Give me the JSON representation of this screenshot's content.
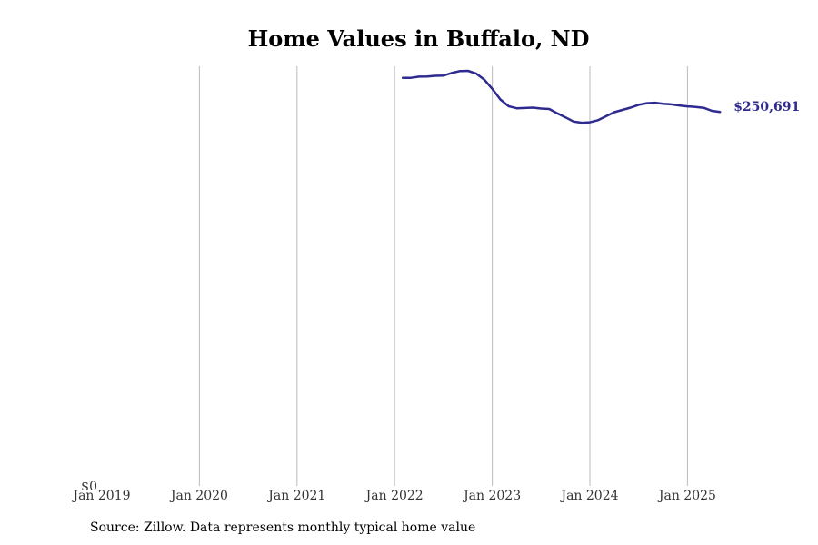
{
  "chart_data": {
    "type": "line",
    "title": "Home Values in Buffalo, ND",
    "source": "Source: Zillow. Data represents monthly typical home value",
    "xlabel": "",
    "ylabel": "",
    "x_ticks": [
      "Jan 2019",
      "Jan 2020",
      "Jan 2021",
      "Jan 2022",
      "Jan 2023",
      "Jan 2024",
      "Jan 2025"
    ],
    "y_ticks": [
      "$0"
    ],
    "ylim": [
      0,
      280000
    ],
    "grid": "vertical",
    "line_color": "#2e2a8f",
    "end_label": "$250,691",
    "series": [
      {
        "x": [
          "2022-02",
          "2022-03",
          "2022-04",
          "2022-05",
          "2022-06",
          "2022-07",
          "2022-08",
          "2022-09",
          "2022-10",
          "2022-11",
          "2022-12",
          "2023-01",
          "2023-02",
          "2023-03",
          "2023-04",
          "2023-05",
          "2023-06",
          "2023-07",
          "2023-08",
          "2023-09",
          "2023-10",
          "2023-11",
          "2023-12",
          "2024-01",
          "2024-02",
          "2024-03",
          "2024-04",
          "2024-05",
          "2024-06",
          "2024-07",
          "2024-08",
          "2024-09",
          "2024-10",
          "2024-11",
          "2024-12",
          "2025-01",
          "2025-02",
          "2025-03",
          "2025-04",
          "2025-05"
        ],
        "values": [
          273500,
          273500,
          274300,
          274400,
          274800,
          275000,
          276700,
          278000,
          278200,
          276400,
          272300,
          266100,
          259000,
          254500,
          253100,
          253300,
          253500,
          252900,
          252600,
          249700,
          247000,
          244200,
          243400,
          243700,
          245100,
          247800,
          250500,
          252000,
          253500,
          255400,
          256500,
          256800,
          256100,
          255700,
          255000,
          254400,
          254000,
          253400,
          251400,
          250691
        ]
      }
    ]
  }
}
